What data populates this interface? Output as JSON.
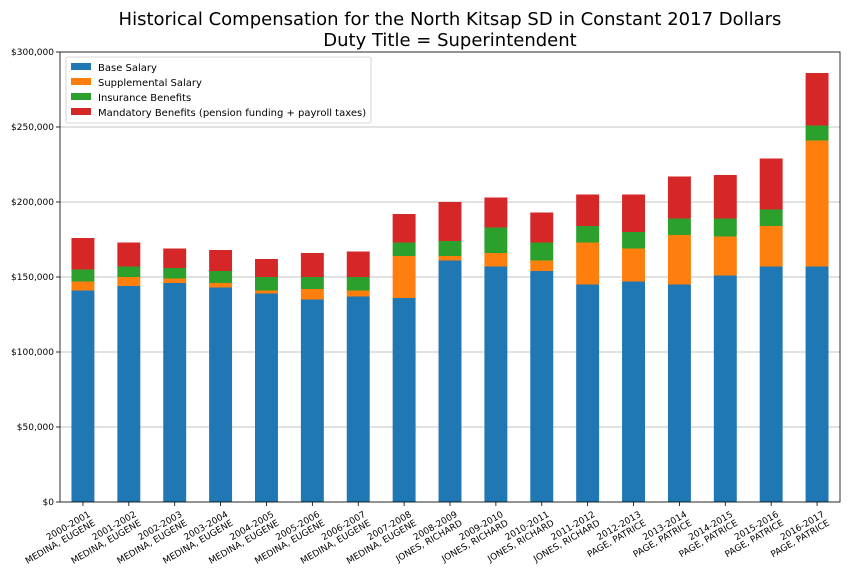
{
  "chart_data": {
    "type": "bar",
    "stacked": true,
    "title": "Historical Compensation for the North Kitsap SD in Constant 2017 Dollars",
    "subtitle": "Duty Title = Superintendent",
    "xlabel": "",
    "ylabel": "",
    "ylim": [
      0,
      300000
    ],
    "yticks": [
      0,
      50000,
      100000,
      150000,
      200000,
      250000,
      300000
    ],
    "ytick_labels": [
      "$0",
      "$50,000",
      "$100,000",
      "$150,000",
      "$200,000",
      "$250,000",
      "$300,000"
    ],
    "grid": "horizontal",
    "legend_position": "top-left",
    "categories": [
      "2000-2001\nMEDINA, EUGENE",
      "2001-2002\nMEDINA, EUGENE",
      "2002-2003\nMEDINA, EUGENE",
      "2003-2004\nMEDINA, EUGENE",
      "2004-2005\nMEDINA, EUGENE",
      "2005-2006\nMEDINA, EUGENE",
      "2006-2007\nMEDINA, EUGENE",
      "2007-2008\nMEDINA, EUGENE",
      "2008-2009\nJONES, RICHARD",
      "2009-2010\nJONES, RICHARD",
      "2010-2011\nJONES, RICHARD",
      "2011-2012\nJONES, RICHARD",
      "2012-2013\nPAGE, PATRICE",
      "2013-2014\nPAGE, PATRICE",
      "2014-2015\nPAGE, PATRICE",
      "2015-2016\nPAGE, PATRICE",
      "2016-2017\nPAGE, PATRICE"
    ],
    "series": [
      {
        "name": "Base Salary",
        "color": "#1f77b4",
        "values": [
          141000,
          144000,
          146000,
          143000,
          139000,
          135000,
          137000,
          136000,
          161000,
          157000,
          154000,
          145000,
          147000,
          145000,
          151000,
          157000,
          157000
        ]
      },
      {
        "name": "Supplemental Salary",
        "color": "#ff7f0e",
        "values": [
          6000,
          6000,
          3000,
          3000,
          2000,
          7000,
          4000,
          28000,
          3000,
          9000,
          7000,
          28000,
          22000,
          33000,
          26000,
          27000,
          84000
        ]
      },
      {
        "name": "Insurance Benefits",
        "color": "#2ca02c",
        "values": [
          8000,
          7000,
          7000,
          8000,
          9000,
          8000,
          9000,
          9000,
          10000,
          17000,
          12000,
          11000,
          11000,
          11000,
          12000,
          11000,
          10000
        ]
      },
      {
        "name": "Mandatory Benefits (pension funding + payroll taxes)",
        "color": "#d62728",
        "values": [
          21000,
          16000,
          13000,
          14000,
          12000,
          16000,
          17000,
          19000,
          26000,
          20000,
          20000,
          21000,
          25000,
          28000,
          29000,
          34000,
          35000
        ]
      }
    ]
  }
}
